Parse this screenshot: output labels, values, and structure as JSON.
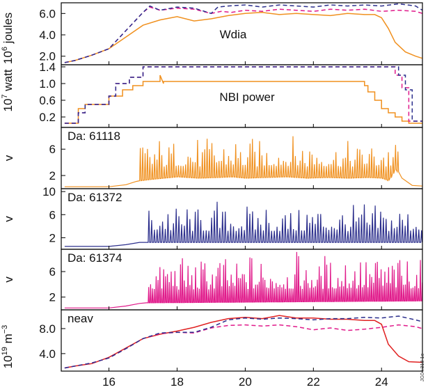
{
  "colors": {
    "orange": "#f0901e",
    "navy": "#2b2e8c",
    "magenta": "#e0198a",
    "red": "#e02020",
    "axis": "#000000"
  },
  "figure": {
    "code": "JG04.318-1c"
  },
  "chart_data": [
    {
      "id": "wdia",
      "type": "line",
      "title": "Wdia",
      "ylabel": "10^6 joules",
      "ylim": [
        1.2,
        7.0
      ],
      "xlim": [
        14.6,
        25.2
      ],
      "yticks": [
        2.0,
        4.0,
        6.0
      ],
      "ytick_labels": [
        "2.0",
        "4.0",
        "6.0"
      ],
      "series": [
        {
          "color_key": "orange",
          "dash": false,
          "x": [
            14.7,
            15.0,
            15.5,
            16.0,
            16.5,
            17.0,
            17.5,
            18.0,
            18.5,
            19.0,
            19.5,
            20.0,
            20.5,
            21.0,
            21.5,
            22.0,
            22.5,
            23.0,
            23.5,
            23.8,
            24.0,
            24.2,
            24.4,
            24.7,
            25.0,
            25.2
          ],
          "y": [
            1.4,
            1.6,
            2.1,
            2.7,
            3.8,
            4.9,
            5.4,
            5.7,
            5.3,
            5.5,
            5.8,
            6.0,
            6.1,
            5.9,
            6.0,
            5.9,
            5.8,
            6.0,
            5.9,
            5.9,
            5.6,
            4.6,
            3.3,
            2.4,
            2.0,
            1.8
          ]
        },
        {
          "color_key": "magenta",
          "dash": true,
          "x": [
            14.7,
            15.0,
            15.5,
            16.0,
            16.5,
            17.0,
            17.2,
            17.5,
            18.0,
            18.5,
            19.0,
            19.3,
            19.6,
            20.0,
            20.5,
            21.0,
            21.5,
            22.0,
            22.5,
            23.0,
            23.5,
            24.0,
            24.5,
            25.0,
            25.2
          ],
          "y": [
            1.4,
            1.6,
            2.1,
            2.7,
            4.4,
            6.1,
            6.6,
            6.3,
            6.5,
            6.4,
            6.0,
            6.2,
            6.1,
            6.3,
            6.2,
            6.4,
            6.3,
            6.2,
            6.4,
            6.3,
            6.4,
            6.2,
            6.3,
            6.2,
            6.0
          ]
        },
        {
          "color_key": "navy",
          "dash": true,
          "x": [
            14.7,
            15.0,
            15.5,
            16.0,
            16.5,
            17.0,
            17.2,
            17.5,
            18.0,
            18.5,
            19.0,
            19.2,
            19.5,
            20.0,
            20.5,
            21.0,
            21.5,
            22.0,
            22.5,
            23.0,
            23.5,
            24.0,
            24.5,
            25.0,
            25.2
          ],
          "y": [
            1.4,
            1.6,
            2.1,
            2.7,
            4.4,
            6.1,
            6.7,
            6.3,
            6.6,
            6.5,
            6.0,
            6.6,
            6.7,
            6.8,
            6.6,
            6.8,
            6.7,
            6.6,
            6.8,
            6.7,
            6.8,
            6.7,
            6.9,
            6.7,
            6.3
          ]
        }
      ]
    },
    {
      "id": "nbi",
      "type": "line",
      "title": "NBI power",
      "ylabel": "10^7 watt",
      "ylim": [
        -0.05,
        1.45
      ],
      "xlim": [
        14.6,
        25.2
      ],
      "yticks": [
        0.2,
        0.6,
        1.0,
        1.4
      ],
      "ytick_labels": [
        "0.2",
        "0.6",
        "1.0",
        "1.4"
      ],
      "series": [
        {
          "color_key": "orange",
          "dash": false,
          "x": [
            14.7,
            15.1,
            15.1,
            15.3,
            15.3,
            16.0,
            16.0,
            16.4,
            16.4,
            16.7,
            16.7,
            17.0,
            17.0,
            17.5,
            17.5,
            17.6,
            17.6,
            17.6,
            23.5,
            23.5,
            23.6,
            23.6,
            23.8,
            23.8,
            24.0,
            24.0,
            24.2,
            24.2,
            24.4,
            24.4,
            24.6,
            24.6,
            24.8,
            24.8,
            25.2
          ],
          "y": [
            0.05,
            0.05,
            0.4,
            0.4,
            0.5,
            0.5,
            0.7,
            0.7,
            0.85,
            0.85,
            0.95,
            0.95,
            1.05,
            1.05,
            1.2,
            1.0,
            1.05,
            1.05,
            1.05,
            0.95,
            0.95,
            0.8,
            0.8,
            0.6,
            0.6,
            0.4,
            0.4,
            0.3,
            0.3,
            0.2,
            0.2,
            0.1,
            0.1,
            0.05,
            0.05
          ]
        },
        {
          "color_key": "magenta",
          "dash": true,
          "x": [
            14.7,
            15.1,
            15.1,
            15.3,
            15.3,
            16.0,
            16.0,
            16.2,
            16.2,
            16.6,
            16.6,
            17.0,
            17.0,
            17.4,
            17.4,
            24.4,
            24.4,
            24.6,
            24.6,
            24.8,
            24.8,
            25.2
          ],
          "y": [
            0.05,
            0.05,
            0.3,
            0.3,
            0.5,
            0.5,
            0.7,
            0.7,
            1.0,
            1.0,
            1.15,
            1.15,
            1.4,
            1.4,
            1.4,
            1.4,
            1.2,
            1.2,
            0.9,
            0.9,
            0.1,
            0.1
          ]
        },
        {
          "color_key": "navy",
          "dash": true,
          "x": [
            14.7,
            15.1,
            15.1,
            15.3,
            15.3,
            16.0,
            16.0,
            16.2,
            16.2,
            16.6,
            16.6,
            17.0,
            17.0,
            17.4,
            17.4,
            24.5,
            24.5,
            24.7,
            24.7,
            24.9,
            24.9,
            25.2
          ],
          "y": [
            0.05,
            0.05,
            0.3,
            0.3,
            0.5,
            0.5,
            0.7,
            0.7,
            1.0,
            1.0,
            1.15,
            1.15,
            1.4,
            1.4,
            1.4,
            1.4,
            1.2,
            1.2,
            0.85,
            0.85,
            0.1,
            0.1
          ]
        }
      ]
    },
    {
      "id": "da61118",
      "type": "line",
      "title": "Da: 61118",
      "ylabel": "v",
      "ylim": [
        0,
        9.3
      ],
      "xlim": [
        14.6,
        25.2
      ],
      "yticks": [
        2,
        6
      ],
      "ytick_labels": [
        "2",
        "6"
      ],
      "series": [
        {
          "color_key": "orange",
          "dash": false,
          "spiky": true,
          "x": [
            14.7,
            16.0,
            16.5,
            16.8,
            16.9,
            17.2,
            17.6,
            18.0,
            18.6,
            19.2,
            19.6,
            20.0,
            20.6,
            21.2,
            21.8,
            22.4,
            23.0,
            23.6,
            24.0,
            24.2,
            24.4,
            24.6,
            24.9,
            25.2
          ],
          "y": [
            0.3,
            0.3,
            0.6,
            1.1,
            1.2,
            1.4,
            1.6,
            1.8,
            1.6,
            1.7,
            1.8,
            1.6,
            1.7,
            1.8,
            1.6,
            1.7,
            1.6,
            1.7,
            1.6,
            1.2,
            3.0,
            1.6,
            0.5,
            0.4
          ],
          "spike_range": [
            16.9,
            24.5
          ],
          "spike_step": 0.07,
          "spike_max": 8.5
        }
      ]
    },
    {
      "id": "da61372",
      "type": "line",
      "title": "Da: 61372",
      "ylabel": "v",
      "ylim": [
        0,
        10.5
      ],
      "xlim": [
        14.6,
        25.2
      ],
      "yticks": [
        2,
        6,
        10
      ],
      "ytick_labels": [
        "2",
        "6",
        "10"
      ],
      "series": [
        {
          "color_key": "navy",
          "dash": false,
          "spiky": true,
          "x": [
            14.7,
            16.0,
            16.5,
            16.9,
            17.1,
            19.1,
            19.2,
            25.2
          ],
          "y": [
            0.5,
            0.5,
            0.8,
            1.2,
            1.2,
            1.2,
            1.2,
            1.2
          ],
          "spike_range": [
            17.15,
            25.2
          ],
          "spike_step": 0.08,
          "spike_max": 9.0
        }
      ]
    },
    {
      "id": "da61374",
      "type": "line",
      "title": "Da: 61374",
      "ylabel": "v",
      "ylim": [
        0,
        9.5
      ],
      "xlim": [
        14.6,
        25.2
      ],
      "yticks": [
        2,
        6
      ],
      "ytick_labels": [
        "2",
        "6"
      ],
      "series": [
        {
          "color_key": "magenta",
          "dash": false,
          "spiky": true,
          "x": [
            14.7,
            16.0,
            16.5,
            16.9,
            17.1,
            25.2
          ],
          "y": [
            0.3,
            0.3,
            0.6,
            1.0,
            1.1,
            1.4
          ],
          "spike_range": [
            17.15,
            25.2
          ],
          "spike_step": 0.055,
          "spike_max": 9.3
        }
      ]
    },
    {
      "id": "neav",
      "type": "line",
      "title": "neav",
      "ylabel": "10^19 m^-3",
      "ylim": [
        1.2,
        11.0
      ],
      "xlim": [
        14.6,
        25.2
      ],
      "yticks": [
        4.0,
        8.0
      ],
      "ytick_labels": [
        "4.0",
        "8.0"
      ],
      "xticks": [
        16,
        18,
        20,
        22,
        24
      ],
      "xtick_labels": [
        "16",
        "18",
        "20",
        "22",
        "24"
      ],
      "series": [
        {
          "color_key": "red",
          "dash": false,
          "x": [
            14.7,
            15.0,
            15.5,
            16.0,
            16.5,
            17.0,
            17.5,
            18.0,
            18.5,
            19.0,
            19.5,
            20.0,
            20.5,
            21.0,
            21.5,
            22.0,
            22.5,
            23.0,
            23.5,
            23.8,
            24.0,
            24.2,
            24.5,
            24.8,
            25.2
          ],
          "y": [
            1.7,
            2.0,
            2.4,
            3.4,
            4.9,
            6.4,
            7.1,
            7.6,
            8.2,
            9.0,
            9.6,
            9.8,
            9.6,
            10.1,
            9.7,
            9.7,
            9.5,
            9.5,
            9.3,
            9.3,
            8.7,
            5.5,
            3.6,
            2.7,
            2.6
          ]
        },
        {
          "color_key": "magenta",
          "dash": true,
          "x": [
            14.7,
            15.0,
            15.5,
            16.0,
            16.5,
            17.0,
            17.5,
            18.0,
            18.5,
            19.0,
            19.5,
            20.0,
            20.5,
            21.0,
            21.5,
            22.0,
            22.5,
            23.0,
            23.5,
            24.0,
            24.5,
            25.0,
            25.2
          ],
          "y": [
            1.7,
            2.0,
            2.5,
            3.3,
            4.8,
            6.4,
            7.2,
            7.4,
            7.3,
            8.1,
            8.5,
            8.6,
            8.4,
            8.6,
            8.3,
            7.8,
            8.1,
            7.7,
            7.9,
            8.2,
            8.6,
            8.3,
            8.0
          ]
        },
        {
          "color_key": "navy",
          "dash": true,
          "x": [
            14.7,
            15.0,
            15.5,
            16.0,
            16.5,
            17.0,
            17.5,
            18.0,
            18.5,
            19.0,
            19.5,
            20.0,
            20.5,
            21.0,
            21.5,
            22.0,
            22.5,
            23.0,
            23.5,
            24.0,
            24.5,
            25.0,
            25.2
          ],
          "y": [
            1.7,
            2.0,
            2.5,
            3.3,
            4.8,
            6.4,
            7.3,
            7.4,
            7.4,
            8.2,
            9.4,
            9.7,
            9.5,
            9.7,
            9.6,
            9.4,
            9.6,
            9.6,
            9.8,
            9.7,
            10.0,
            9.4,
            9.1
          ]
        }
      ]
    }
  ]
}
